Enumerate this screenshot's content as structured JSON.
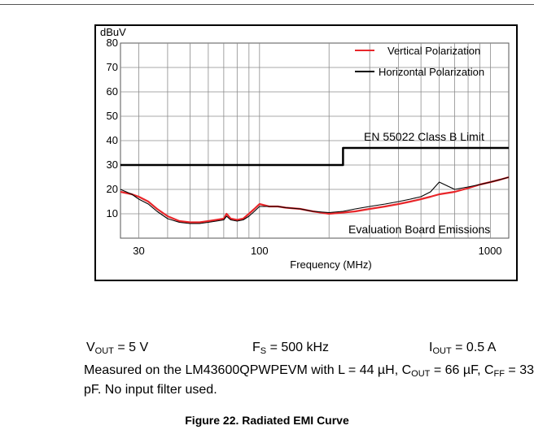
{
  "chart_data": {
    "type": "line",
    "title": "",
    "ylabel": "dBuV",
    "xlabel": "Frequency (MHz)",
    "x_scale": "log",
    "xlim": [
      25,
      1200
    ],
    "ylim": [
      0,
      80
    ],
    "grid": true,
    "x_ticks": [
      30,
      100,
      1000
    ],
    "x_tick_labels": [
      "30",
      "100",
      "1000"
    ],
    "y_ticks": [
      10,
      20,
      30,
      40,
      50,
      60,
      70,
      80
    ],
    "y_tick_labels": [
      "10",
      "20",
      "30",
      "40",
      "50",
      "60",
      "70",
      "80"
    ],
    "legend_position": "top-right",
    "series": [
      {
        "name": "Vertical Polarization",
        "color": "#e8262a",
        "x": [
          25,
          28,
          30,
          33,
          36,
          40,
          45,
          50,
          55,
          60,
          65,
          70,
          72,
          75,
          80,
          85,
          90,
          95,
          100,
          110,
          120,
          130,
          150,
          170,
          200,
          230,
          260,
          300,
          350,
          400,
          450,
          500,
          550,
          600,
          700,
          800,
          900,
          1000,
          1100,
          1200
        ],
        "y": [
          19,
          18,
          17,
          15,
          12,
          9,
          7,
          6.5,
          6.5,
          7,
          7.5,
          8,
          10,
          8,
          7.5,
          8,
          10,
          12,
          14,
          13,
          13,
          12.5,
          12,
          11,
          10,
          10.5,
          11,
          12,
          13,
          14,
          15,
          16,
          17,
          18,
          19,
          20.5,
          22,
          23,
          24,
          25
        ]
      },
      {
        "name": "Horizontal Polarization",
        "color": "#000000",
        "x": [
          25,
          28,
          30,
          33,
          36,
          40,
          45,
          50,
          55,
          60,
          65,
          70,
          72,
          75,
          80,
          85,
          90,
          95,
          100,
          110,
          120,
          130,
          150,
          170,
          200,
          230,
          260,
          300,
          350,
          400,
          450,
          500,
          550,
          600,
          700,
          800,
          900,
          1000,
          1100,
          1200
        ],
        "y": [
          20,
          18,
          16,
          14,
          11,
          8,
          6.5,
          6,
          6,
          6.5,
          7,
          7.5,
          9,
          7.5,
          7,
          7.5,
          9,
          11,
          13,
          13,
          13,
          12.5,
          12,
          11,
          10.5,
          11,
          12,
          13,
          14,
          15,
          16,
          17,
          19,
          23,
          20,
          21,
          22,
          23,
          24,
          25
        ]
      },
      {
        "name": "EN 55022 Class B Limit",
        "color": "#000000",
        "x": [
          25,
          230,
          230,
          1200
        ],
        "y": [
          30,
          30,
          37,
          37
        ]
      }
    ],
    "annotations": [
      "EN 55022 Class B Limit",
      "Evaluation Board Emissions"
    ]
  },
  "params": {
    "vout": {
      "sym": "V",
      "sub": "OUT",
      "val": " = 5 V"
    },
    "fs": {
      "sym": "F",
      "sub": "S",
      "val": " = 500 kHz"
    },
    "iout": {
      "sym": "I",
      "sub": "OUT",
      "val": " = 0.5 A"
    }
  },
  "note": {
    "part1": "Measured on the LM43600QPWPEVM with L = 44 µH, C",
    "sub1": "OUT",
    "part2": " = 66 µF, C",
    "sub2": "FF",
    "part3": " = 33 pF. No input filter used."
  },
  "figure_caption": "Figure 22. Radiated EMI Curve"
}
